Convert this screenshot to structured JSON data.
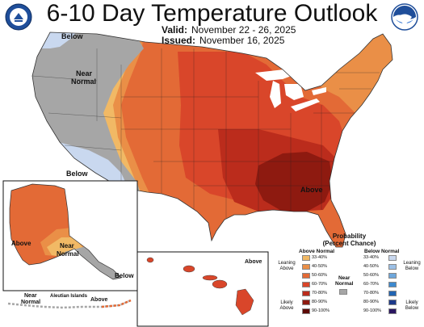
{
  "header": {
    "title": "6-10 Day Temperature Outlook",
    "valid_label": "Valid:",
    "valid_dates": "November 22 - 26, 2025",
    "issued_label": "Issued:",
    "issued_date": "November 16, 2025"
  },
  "map": {
    "conus_labels": {
      "below_nw": "Below",
      "near_normal_1": "Near",
      "near_normal_2": "Normal",
      "below_sw": "Below",
      "above_se": "Above"
    },
    "alaska_labels": {
      "above": "Above",
      "near_1": "Near",
      "near_2": "Normal",
      "below": "Below"
    },
    "aleutian_labels": {
      "near_1": "Near",
      "near_2": "Normal",
      "aleutian_islands": "Aleutian Islands",
      "above": "Above"
    },
    "hawaii_labels": {
      "above": "Above"
    }
  },
  "legend": {
    "title": "Probability",
    "subtitle": "(Percent Chance)",
    "above_header": "Above Normal",
    "below_header": "Below Normal",
    "near_header_1": "Near",
    "near_header_2": "Normal",
    "leaning_above_1": "Leaning",
    "leaning_above_2": "Above",
    "likely_above_1": "Likely",
    "likely_above_2": "Above",
    "leaning_below_1": "Leaning",
    "leaning_below_2": "Below",
    "likely_below_1": "Likely",
    "likely_below_2": "Below",
    "above_bins": [
      {
        "label": "33-40%",
        "color": "#f1b965"
      },
      {
        "label": "40-50%",
        "color": "#ea8f47"
      },
      {
        "label": "50-60%",
        "color": "#e36a36"
      },
      {
        "label": "60-70%",
        "color": "#d9462a"
      },
      {
        "label": "70-80%",
        "color": "#bb2c1c"
      },
      {
        "label": "80-90%",
        "color": "#8e1a10"
      },
      {
        "label": "90-100%",
        "color": "#5c0a06"
      }
    ],
    "below_bins": [
      {
        "label": "33-40%",
        "color": "#c9d8ef"
      },
      {
        "label": "40-50%",
        "color": "#9cc0e6"
      },
      {
        "label": "50-60%",
        "color": "#6ea7dc"
      },
      {
        "label": "60-70%",
        "color": "#3d89cf"
      },
      {
        "label": "70-80%",
        "color": "#2264b2"
      },
      {
        "label": "80-90%",
        "color": "#1d3a8a"
      },
      {
        "label": "90-100%",
        "color": "#2a1560"
      }
    ],
    "near_color": "#a6a6a6"
  }
}
